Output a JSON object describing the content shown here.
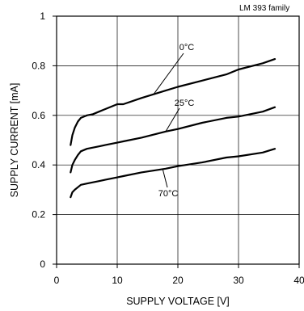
{
  "chart_data": {
    "type": "line",
    "title": "",
    "corner_note": "LM 393 family",
    "xlabel": "SUPPLY VOLTAGE [V]",
    "ylabel": "SUPPLY CURRENT [mA]",
    "xlim": [
      0,
      40
    ],
    "ylim": [
      0,
      1
    ],
    "x_ticks": [
      0,
      10,
      20,
      30,
      40
    ],
    "x_tick_labels": [
      "0",
      "10",
      "20",
      "30",
      "40"
    ],
    "y_ticks": [
      0,
      0.2,
      0.4,
      0.6,
      0.8,
      1
    ],
    "y_tick_labels": [
      "0",
      "0.2",
      "0.4",
      "0.6",
      "0.8",
      "1"
    ],
    "grid": true,
    "legend": "none",
    "series": [
      {
        "name": "0°C",
        "color": "#000000",
        "x": [
          2.3,
          2.6,
          3,
          3.5,
          4,
          5,
          6,
          7,
          8,
          10,
          11,
          14,
          18,
          20,
          24,
          28,
          30,
          34,
          36
        ],
        "y": [
          0.48,
          0.52,
          0.55,
          0.575,
          0.59,
          0.6,
          0.605,
          0.615,
          0.625,
          0.645,
          0.645,
          0.67,
          0.7,
          0.715,
          0.74,
          0.765,
          0.785,
          0.81,
          0.827
        ]
      },
      {
        "name": "25°C",
        "color": "#000000",
        "x": [
          2.3,
          2.6,
          3,
          3.5,
          4,
          5,
          6,
          7,
          8,
          10,
          11,
          14,
          18,
          20,
          24,
          28,
          30,
          34,
          36
        ],
        "y": [
          0.37,
          0.4,
          0.42,
          0.44,
          0.455,
          0.465,
          0.47,
          0.475,
          0.48,
          0.49,
          0.495,
          0.51,
          0.535,
          0.545,
          0.57,
          0.59,
          0.595,
          0.615,
          0.633
        ]
      },
      {
        "name": "70°C",
        "color": "#000000",
        "x": [
          2.3,
          2.6,
          3,
          3.5,
          4,
          5,
          6,
          7,
          8,
          10,
          11,
          14,
          18,
          20,
          24,
          28,
          30,
          34,
          36
        ],
        "y": [
          0.27,
          0.29,
          0.3,
          0.31,
          0.32,
          0.325,
          0.33,
          0.335,
          0.34,
          0.35,
          0.355,
          0.37,
          0.385,
          0.395,
          0.41,
          0.43,
          0.435,
          0.45,
          0.465
        ]
      }
    ],
    "annotations": [
      {
        "text": "0°C",
        "series": 0,
        "at_x": 16
      },
      {
        "text": "25°C",
        "series": 1,
        "at_x": 18
      },
      {
        "text": "70°C",
        "series": 2,
        "at_x": 17.5
      }
    ]
  }
}
